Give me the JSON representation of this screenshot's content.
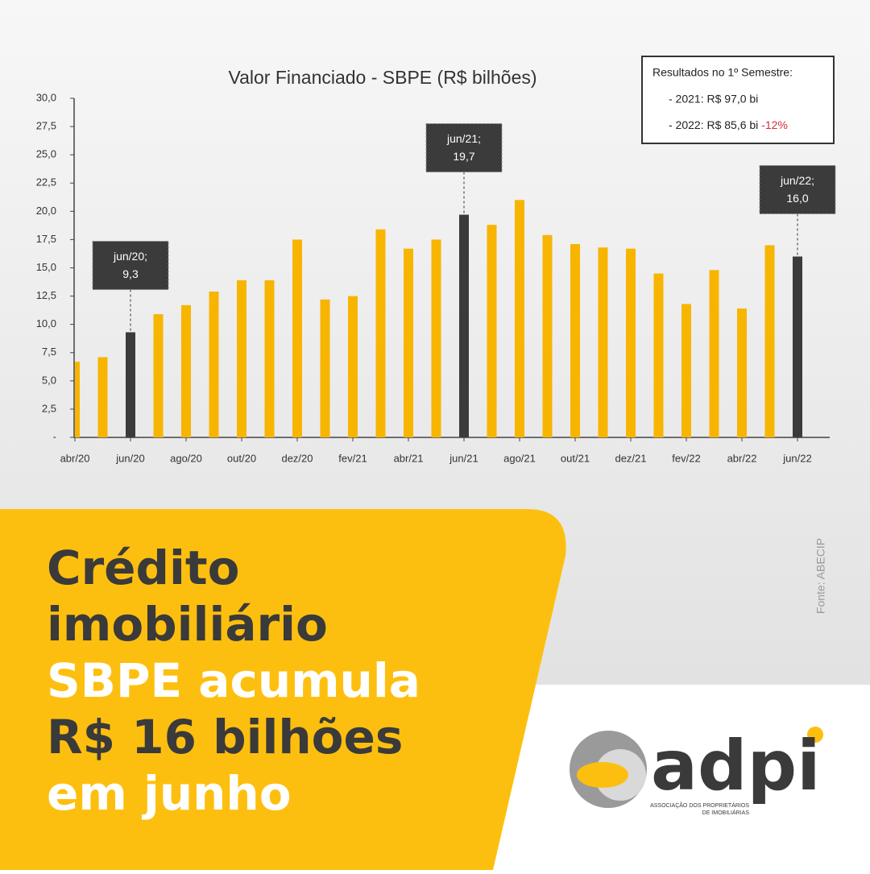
{
  "chart_data": {
    "type": "bar",
    "title": "Valor Financiado - SBPE (R$ bilhões)",
    "categories": [
      "abr/20",
      null,
      "jun/20",
      null,
      "ago/20",
      null,
      "out/20",
      null,
      "dez/20",
      null,
      "fev/21",
      null,
      "abr/21",
      null,
      "jun/21",
      null,
      "ago/21",
      null,
      "out/21",
      null,
      "dez/21",
      null,
      "fev/22",
      null,
      "abr/22",
      null,
      "jun/22"
    ],
    "values": [
      6.7,
      7.1,
      9.3,
      10.9,
      11.7,
      12.9,
      13.9,
      13.9,
      17.5,
      12.2,
      12.5,
      18.4,
      16.7,
      17.5,
      19.7,
      18.8,
      21.0,
      17.9,
      17.1,
      16.8,
      16.7,
      14.5,
      11.8,
      14.8,
      11.4,
      17.0,
      16.0
    ],
    "colors": [
      "#f7b500",
      "#f7b500",
      "#3b3b3b",
      "#f7b500",
      "#f7b500",
      "#f7b500",
      "#f7b500",
      "#f7b500",
      "#f7b500",
      "#f7b500",
      "#f7b500",
      "#f7b500",
      "#f7b500",
      "#f7b500",
      "#3b3b3b",
      "#f7b500",
      "#f7b500",
      "#f7b500",
      "#f7b500",
      "#f7b500",
      "#f7b500",
      "#f7b500",
      "#f7b500",
      "#f7b500",
      "#f7b500",
      "#f7b500",
      "#3b3b3b"
    ],
    "ylim": [
      0,
      30
    ],
    "yticks": [
      {
        "value": 0,
        "label": "-"
      },
      {
        "value": 2.5,
        "label": "2,5"
      },
      {
        "value": 5,
        "label": "5,0"
      },
      {
        "value": 7.5,
        "label": "7,5"
      },
      {
        "value": 10,
        "label": "10,0"
      },
      {
        "value": 12.5,
        "label": "12,5"
      },
      {
        "value": 15,
        "label": "15,0"
      },
      {
        "value": 17.5,
        "label": "17,5"
      },
      {
        "value": 20,
        "label": "20,0"
      },
      {
        "value": 22.5,
        "label": "22,5"
      },
      {
        "value": 25,
        "label": "25,0"
      },
      {
        "value": 27.5,
        "label": "27,5"
      },
      {
        "value": 30,
        "label": "30,0"
      }
    ],
    "grid": false,
    "annotations": [
      {
        "category": "jun/20",
        "label": "jun/20;",
        "value_label": "9,3"
      },
      {
        "category": "jun/21",
        "label": "jun/21;",
        "value_label": "19,7"
      },
      {
        "category": "jun/22",
        "label": "jun/22;",
        "value_label": "16,0"
      }
    ],
    "summary": {
      "title": "Resultados no 1º Semestre:",
      "line_2021": "- 2021: R$ 97,0 bi",
      "line_2022": "- 2022: R$ 85,6 bi",
      "change_2022": "-12%"
    }
  },
  "headline": {
    "line1": "Crédito",
    "line2": "imobiliário",
    "line3": "SBPE acumula",
    "line4": "R$ 16 bilhões",
    "line5": "em junho"
  },
  "source": "Fonte: ABECIP",
  "logo": {
    "name": "adpi",
    "tagline1": "ASSOCIAÇÃO DOS PROPRIETÁRIOS",
    "tagline2": "DE IMOBILIÁRIAS"
  }
}
